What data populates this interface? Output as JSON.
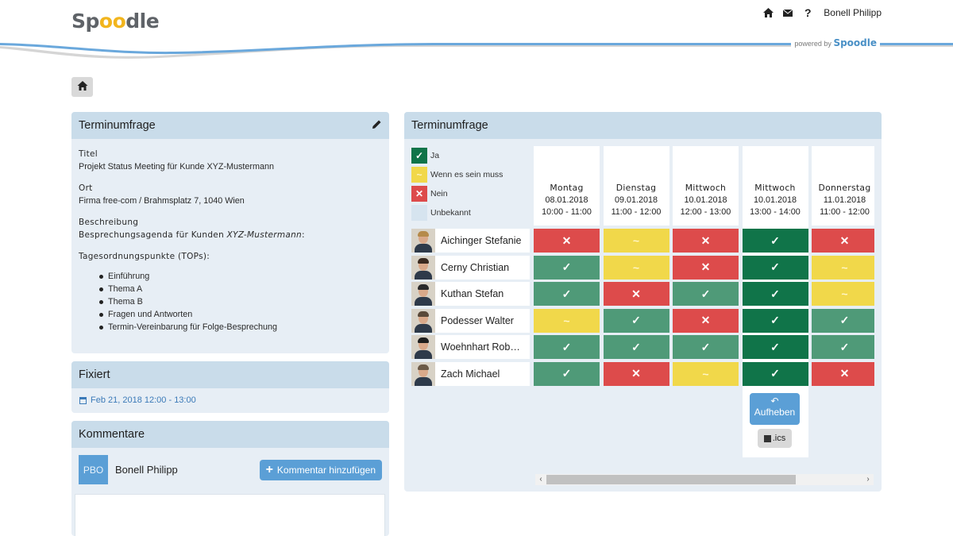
{
  "header": {
    "logo_prefix": "Sp",
    "logo_oo": "oo",
    "logo_suffix": "dle",
    "user": "Bonell Philipp",
    "icons": [
      "home-icon",
      "mail-icon",
      "help-icon"
    ],
    "powered_text": "powered by",
    "powered_brand": "Spoodle"
  },
  "colors": {
    "accent": "#5b9fd6",
    "panel_head": "#c9dcea",
    "ja": "#4f9a78",
    "ja_fixed": "#107449",
    "wenn_es_sein_muss": "#f1d84a",
    "nein": "#dd4b4b",
    "unbekannt": "#d6e4ef"
  },
  "details_panel": {
    "title": "Terminumfrage",
    "titel_label": "Titel",
    "titel_value": "Projekt Status Meeting für Kunde XYZ-Mustermann",
    "ort_label": "Ort",
    "ort_value": "Firma free-com / Brahmsplatz 7, 1040 Wien",
    "beschreibung_label": "Beschreibung",
    "beschreibung_line_prefix": "Besprechungsagenda für Kunden ",
    "beschreibung_line_italic": "XYZ-Mustermann",
    "beschreibung_line_suffix": ":",
    "tops_label": "Tagesordnungspunkte (TOPs):",
    "tops": [
      "Einführung",
      "Thema A",
      "Thema B",
      "Fragen und Antworten",
      "Termin-Vereinbarung für Folge-Besprechung"
    ]
  },
  "fixed_panel": {
    "title": "Fixiert",
    "date": "Feb 21, 2018 12:00 - 13:00"
  },
  "comments_panel": {
    "title": "Kommentare",
    "avatar_initials": "PBO",
    "user": "Bonell Philipp",
    "add_button": "Kommentar hinzufügen"
  },
  "poll_panel": {
    "title": "Terminumfrage",
    "legend": [
      {
        "label": "Ja",
        "symbol": "✓",
        "status": "ja"
      },
      {
        "label": "Wenn es sein muss",
        "symbol": "~",
        "status": "muss"
      },
      {
        "label": "Nein",
        "symbol": "✕",
        "status": "nein"
      },
      {
        "label": "Unbekannt",
        "symbol": "",
        "status": "unbekannt"
      }
    ],
    "columns": [
      {
        "day": "Montag",
        "date": "08.01.2018",
        "time": "10:00 - 11:00"
      },
      {
        "day": "Dienstag",
        "date": "09.01.2018",
        "time": "11:00 - 12:00"
      },
      {
        "day": "Mittwoch",
        "date": "10.01.2018",
        "time": "12:00 - 13:00"
      },
      {
        "day": "Mittwoch",
        "date": "10.01.2018",
        "time": "13:00 - 14:00"
      },
      {
        "day": "Donnerstag",
        "date": "11.01.2018",
        "time": "11:00 - 12:00"
      }
    ],
    "selected_column_index": 3,
    "participants": [
      {
        "name": "Aichinger Stefanie",
        "votes": [
          "nein",
          "muss",
          "nein",
          "ja",
          "nein"
        ]
      },
      {
        "name": "Cerny Christian",
        "votes": [
          "ja",
          "muss",
          "nein",
          "ja",
          "muss"
        ]
      },
      {
        "name": "Kuthan Stefan",
        "votes": [
          "ja",
          "nein",
          "ja",
          "ja",
          "muss"
        ]
      },
      {
        "name": "Podesser Walter",
        "votes": [
          "muss",
          "ja",
          "nein",
          "ja",
          "ja"
        ]
      },
      {
        "name": "Woehnhart Rob…",
        "votes": [
          "ja",
          "ja",
          "ja",
          "ja",
          "ja"
        ]
      },
      {
        "name": "Zach Michael",
        "votes": [
          "ja",
          "nein",
          "muss",
          "ja",
          "nein"
        ]
      }
    ],
    "aufheben_label": "Aufheben",
    "ics_label": ".ics",
    "scroll_left": "‹",
    "scroll_right": "›"
  }
}
